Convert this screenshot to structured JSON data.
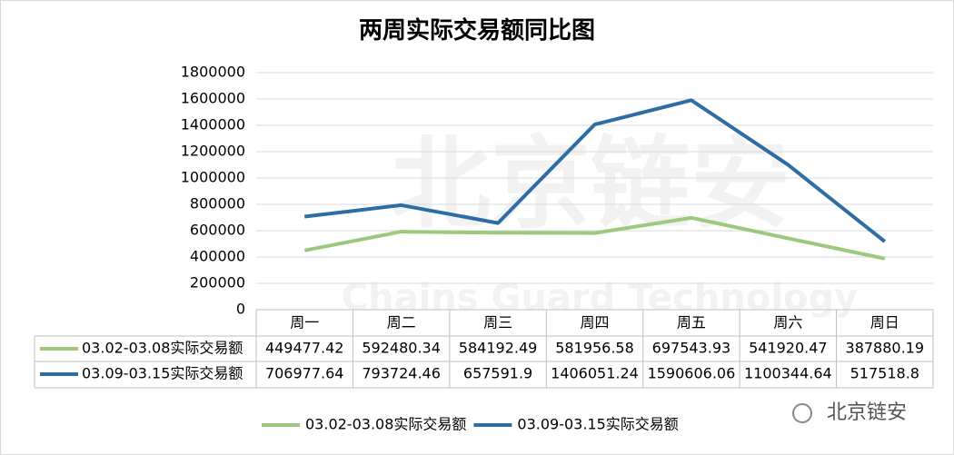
{
  "chart_data": {
    "type": "line",
    "title": "两周实际交易额同比图",
    "categories": [
      "周一",
      "周二",
      "周三",
      "周四",
      "周五",
      "周六",
      "周日"
    ],
    "series": [
      {
        "name": "03.02-03.08实际交易额",
        "color": "#9dc97e",
        "values": [
          449477.42,
          592480.34,
          584192.49,
          581956.58,
          697543.93,
          541920.47,
          387880.19
        ]
      },
      {
        "name": "03.09-03.15实际交易额",
        "color": "#2e6da4",
        "values": [
          706977.64,
          793724.46,
          657591.9,
          1406051.24,
          1590606.06,
          1100344.64,
          517518.8
        ]
      }
    ],
    "ylim": [
      0,
      1800000
    ],
    "yticks": [
      0,
      200000,
      400000,
      600000,
      800000,
      1000000,
      1200000,
      1400000,
      1600000,
      1800000
    ],
    "grid": true,
    "legend": "bottom",
    "watermark": "北京链安",
    "background_watermark": {
      "name": "北京链安",
      "subtitle": "Chains Guard Technology"
    }
  }
}
